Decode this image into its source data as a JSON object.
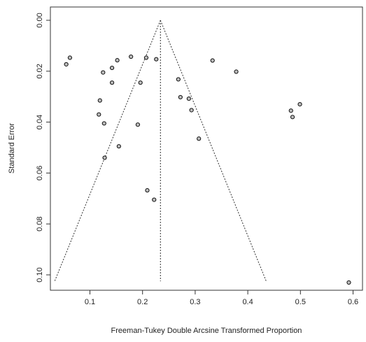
{
  "chart_data": {
    "type": "scatter",
    "subtype": "funnel plot",
    "title": "",
    "xlabel": "Freeman-Tukey Double Arcsine Transformed Proportion",
    "ylabel": "Standard Error",
    "xlim": [
      0.0,
      0.6
    ],
    "ylim": [
      0.0,
      0.1
    ],
    "y_reversed": true,
    "x_ticks": [
      "0.1",
      "0.2",
      "0.3",
      "0.4",
      "0.5",
      "0.6"
    ],
    "y_ticks": [
      "0.00",
      "0.02",
      "0.04",
      "0.06",
      "0.08",
      "0.10"
    ],
    "grid": false,
    "legend": "none",
    "pooled_estimate": 0.234,
    "funnel": {
      "apex": [
        0.234,
        0.0
      ],
      "left_base": [
        0.033,
        0.1025
      ],
      "right_base": [
        0.435,
        0.1025
      ],
      "style": "dotted"
    },
    "points": [
      {
        "x": 0.055,
        "y": 0.0173
      },
      {
        "x": 0.062,
        "y": 0.0147
      },
      {
        "x": 0.125,
        "y": 0.0205
      },
      {
        "x": 0.142,
        "y": 0.0187
      },
      {
        "x": 0.152,
        "y": 0.0157
      },
      {
        "x": 0.178,
        "y": 0.0143
      },
      {
        "x": 0.207,
        "y": 0.0147
      },
      {
        "x": 0.226,
        "y": 0.0153
      },
      {
        "x": 0.142,
        "y": 0.0245
      },
      {
        "x": 0.196,
        "y": 0.0245
      },
      {
        "x": 0.119,
        "y": 0.0315
      },
      {
        "x": 0.117,
        "y": 0.037
      },
      {
        "x": 0.127,
        "y": 0.0405
      },
      {
        "x": 0.191,
        "y": 0.041
      },
      {
        "x": 0.155,
        "y": 0.0495
      },
      {
        "x": 0.128,
        "y": 0.054
      },
      {
        "x": 0.209,
        "y": 0.0668
      },
      {
        "x": 0.222,
        "y": 0.0705
      },
      {
        "x": 0.268,
        "y": 0.0232
      },
      {
        "x": 0.272,
        "y": 0.0302
      },
      {
        "x": 0.288,
        "y": 0.0308
      },
      {
        "x": 0.293,
        "y": 0.0353
      },
      {
        "x": 0.307,
        "y": 0.0465
      },
      {
        "x": 0.333,
        "y": 0.0158
      },
      {
        "x": 0.378,
        "y": 0.0202
      },
      {
        "x": 0.482,
        "y": 0.0355
      },
      {
        "x": 0.499,
        "y": 0.033
      },
      {
        "x": 0.485,
        "y": 0.038
      },
      {
        "x": 0.592,
        "y": 0.103
      }
    ]
  },
  "colors": {
    "axis": "#333333",
    "point_stroke": "#111111",
    "point_fill": "#bdbdbd",
    "funnel_line": "#333333",
    "text": "#222222"
  }
}
